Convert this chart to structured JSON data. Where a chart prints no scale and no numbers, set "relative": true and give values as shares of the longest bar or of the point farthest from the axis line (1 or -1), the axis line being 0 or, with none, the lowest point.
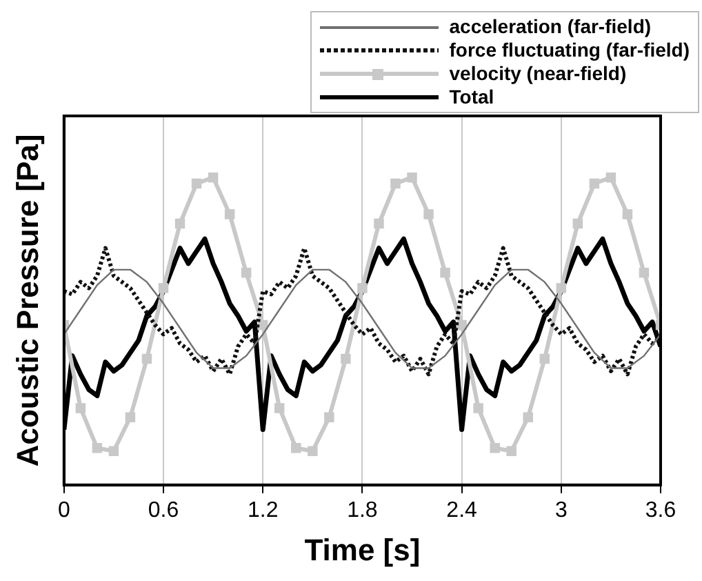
{
  "chart_data": {
    "type": "line",
    "relative": true,
    "xlabel": "Time [s]",
    "ylabel": "Acoustic Pressure [Pa]",
    "xlim": [
      0,
      3.6
    ],
    "xticks": [
      0,
      0.6,
      1.2,
      1.8,
      2.4,
      3,
      3.6
    ],
    "grid": "x",
    "legend": "top right",
    "series": [
      {
        "name": "acceleration (far-field)",
        "color": "#707070",
        "line_style": "solid",
        "marker": "none",
        "x": [
          0,
          0.1,
          0.2,
          0.3,
          0.4,
          0.5,
          0.6,
          0.7,
          0.8,
          0.9,
          1,
          1.1,
          1.2,
          1.3,
          1.4,
          1.5,
          1.6,
          1.7,
          1.8,
          1.9,
          2,
          2.1,
          2.2,
          2.3,
          2.4,
          2.5,
          2.6,
          2.7,
          2.8,
          2.9,
          3,
          3.1,
          3.2,
          3.3,
          3.4,
          3.5,
          3.6
        ],
        "values": [
          0.49,
          0.57,
          0.65,
          0.7,
          0.7,
          0.66,
          0.59,
          0.51,
          0.43,
          0.38,
          0.38,
          0.42,
          0.49,
          0.57,
          0.65,
          0.7,
          0.7,
          0.66,
          0.59,
          0.51,
          0.43,
          0.38,
          0.38,
          0.42,
          0.49,
          0.57,
          0.65,
          0.7,
          0.7,
          0.66,
          0.59,
          0.51,
          0.43,
          0.38,
          0.38,
          0.42,
          0.49
        ]
      },
      {
        "name": "force fluctuating (far-field)",
        "color": "#111111",
        "line_style": "dotted",
        "marker": "none",
        "x": [
          0,
          0.05,
          0.1,
          0.15,
          0.2,
          0.25,
          0.3,
          0.35,
          0.4,
          0.45,
          0.5,
          0.55,
          0.6,
          0.65,
          0.7,
          0.75,
          0.8,
          0.85,
          0.9,
          0.95,
          1,
          1.05,
          1.1,
          1.15,
          1.2,
          1.25,
          1.3,
          1.35,
          1.4,
          1.45,
          1.5,
          1.55,
          1.6,
          1.65,
          1.7,
          1.75,
          1.8,
          1.85,
          1.9,
          1.95,
          2,
          2.05,
          2.1,
          2.15,
          2.2,
          2.25,
          2.3,
          2.35,
          2.4,
          2.45,
          2.5,
          2.55,
          2.6,
          2.65,
          2.7,
          2.75,
          2.8,
          2.85,
          2.9,
          2.95,
          3,
          3.05,
          3.1,
          3.15,
          3.2,
          3.25,
          3.3,
          3.35,
          3.4,
          3.45,
          3.5,
          3.55,
          3.6
        ],
        "values": [
          0.63,
          0.62,
          0.66,
          0.64,
          0.68,
          0.77,
          0.68,
          0.66,
          0.64,
          0.6,
          0.56,
          0.52,
          0.49,
          0.51,
          0.46,
          0.44,
          0.4,
          0.42,
          0.37,
          0.41,
          0.36,
          0.45,
          0.49,
          0.46,
          0.63,
          0.62,
          0.66,
          0.64,
          0.68,
          0.77,
          0.68,
          0.66,
          0.64,
          0.6,
          0.56,
          0.52,
          0.49,
          0.51,
          0.46,
          0.44,
          0.4,
          0.42,
          0.37,
          0.41,
          0.36,
          0.45,
          0.49,
          0.46,
          0.63,
          0.62,
          0.66,
          0.64,
          0.68,
          0.77,
          0.68,
          0.66,
          0.64,
          0.6,
          0.56,
          0.52,
          0.49,
          0.51,
          0.46,
          0.44,
          0.4,
          0.42,
          0.37,
          0.41,
          0.36,
          0.45,
          0.49,
          0.46,
          0.48
        ]
      },
      {
        "name": "velocity (near-field)",
        "color": "#c8c8c8",
        "line_style": "solid",
        "marker": "square",
        "x": [
          0,
          0.1,
          0.2,
          0.3,
          0.4,
          0.5,
          0.6,
          0.7,
          0.8,
          0.9,
          1,
          1.1,
          1.2,
          1.3,
          1.4,
          1.5,
          1.6,
          1.7,
          1.8,
          1.9,
          2,
          2.1,
          2.2,
          2.3,
          2.4,
          2.5,
          2.6,
          2.7,
          2.8,
          2.9,
          3,
          3.1,
          3.2,
          3.3,
          3.4,
          3.5,
          3.6
        ],
        "values": [
          0.52,
          0.25,
          0.12,
          0.11,
          0.22,
          0.41,
          0.64,
          0.85,
          0.98,
          1,
          0.88,
          0.69,
          0.52,
          0.25,
          0.12,
          0.11,
          0.22,
          0.41,
          0.64,
          0.85,
          0.98,
          1,
          0.88,
          0.69,
          0.52,
          0.25,
          0.12,
          0.11,
          0.22,
          0.41,
          0.64,
          0.85,
          0.98,
          1,
          0.88,
          0.69,
          0.52
        ]
      },
      {
        "name": "Total",
        "color": "#000000",
        "line_style": "solid",
        "marker": "none",
        "x": [
          0,
          0.05,
          0.1,
          0.15,
          0.2,
          0.25,
          0.3,
          0.35,
          0.4,
          0.45,
          0.5,
          0.55,
          0.6,
          0.65,
          0.7,
          0.75,
          0.8,
          0.85,
          0.9,
          0.95,
          1,
          1.05,
          1.1,
          1.15,
          1.2,
          1.25,
          1.3,
          1.35,
          1.4,
          1.45,
          1.5,
          1.55,
          1.6,
          1.65,
          1.7,
          1.75,
          1.8,
          1.85,
          1.9,
          1.95,
          2,
          2.05,
          2.1,
          2.15,
          2.2,
          2.25,
          2.3,
          2.35,
          2.4,
          2.45,
          2.5,
          2.55,
          2.6,
          2.65,
          2.7,
          2.75,
          2.8,
          2.85,
          2.9,
          2.95,
          3,
          3.05,
          3.1,
          3.15,
          3.2,
          3.25,
          3.3,
          3.35,
          3.4,
          3.45,
          3.5,
          3.55,
          3.6
        ],
        "values": [
          0.18,
          0.42,
          0.36,
          0.31,
          0.29,
          0.4,
          0.37,
          0.39,
          0.43,
          0.47,
          0.55,
          0.58,
          0.63,
          0.7,
          0.77,
          0.72,
          0.76,
          0.8,
          0.72,
          0.66,
          0.59,
          0.55,
          0.5,
          0.53,
          0.18,
          0.42,
          0.36,
          0.31,
          0.29,
          0.4,
          0.37,
          0.39,
          0.43,
          0.47,
          0.55,
          0.58,
          0.63,
          0.7,
          0.77,
          0.72,
          0.76,
          0.8,
          0.72,
          0.66,
          0.59,
          0.55,
          0.5,
          0.53,
          0.18,
          0.42,
          0.36,
          0.31,
          0.29,
          0.4,
          0.37,
          0.39,
          0.43,
          0.47,
          0.55,
          0.58,
          0.63,
          0.7,
          0.77,
          0.72,
          0.76,
          0.8,
          0.72,
          0.66,
          0.59,
          0.55,
          0.5,
          0.53,
          0.45
        ]
      }
    ]
  }
}
